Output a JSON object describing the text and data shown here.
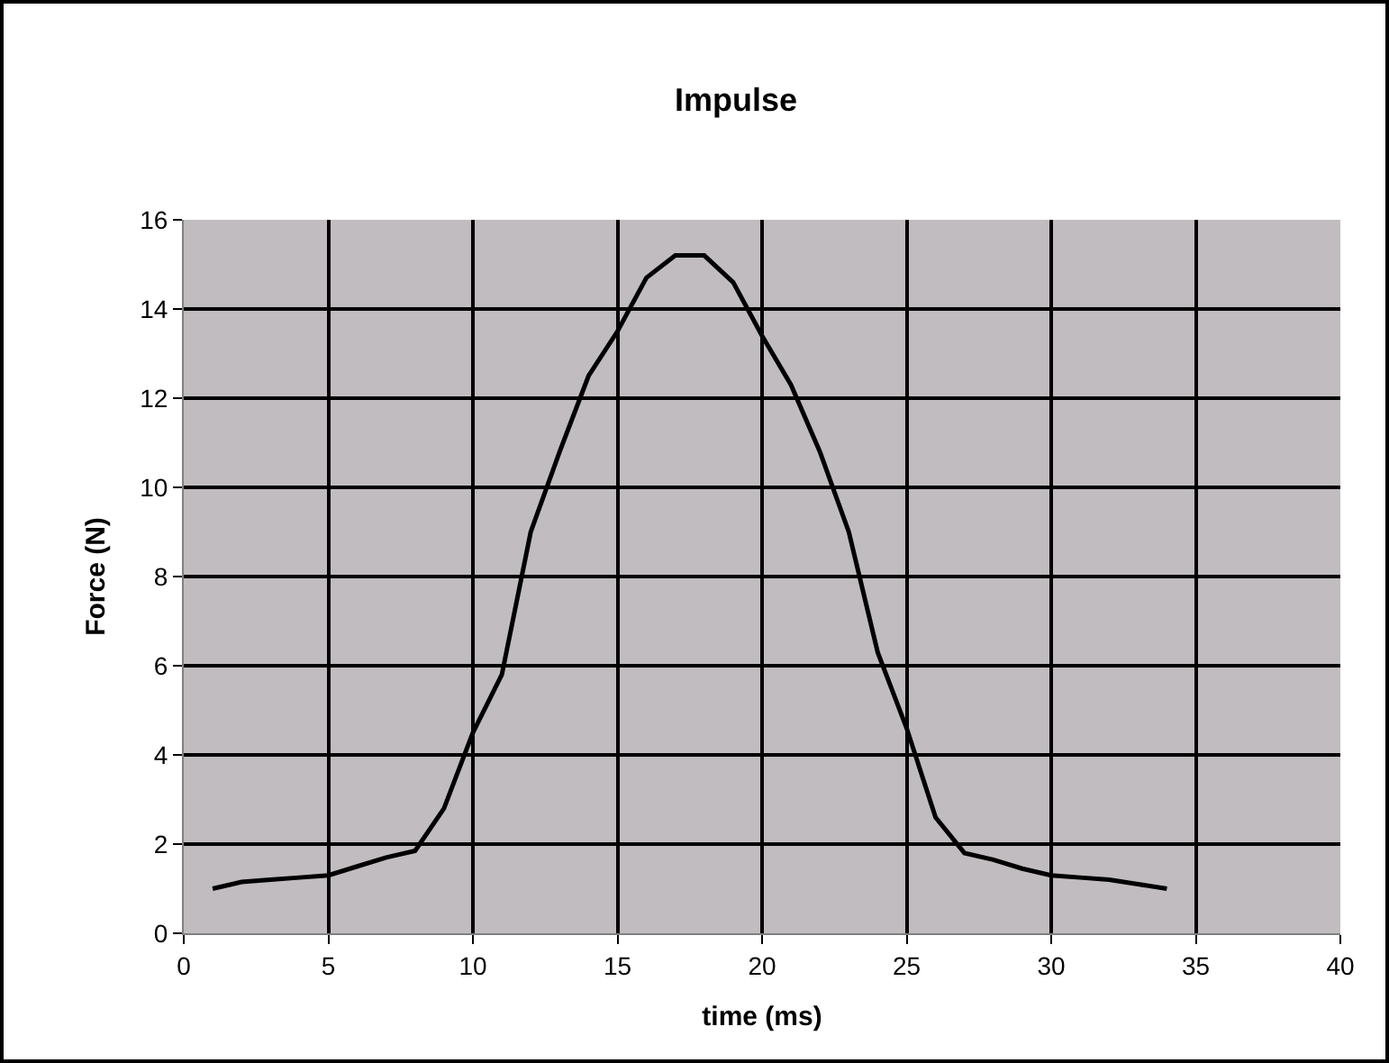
{
  "chart_data": {
    "type": "line",
    "title": "Impulse",
    "xlabel": "time (ms)",
    "ylabel": "Force (N)",
    "x": [
      1,
      2,
      3,
      4,
      5,
      6,
      7,
      8,
      9,
      10,
      11,
      12,
      13,
      14,
      15,
      16,
      17,
      18,
      19,
      20,
      21,
      22,
      23,
      24,
      25,
      26,
      27,
      28,
      29,
      30,
      31,
      32,
      33,
      34
    ],
    "series": [
      {
        "color": "#000000",
        "values": [
          1.0,
          1.15,
          1.2,
          1.25,
          1.3,
          1.5,
          1.7,
          1.85,
          2.8,
          4.5,
          5.8,
          9.0,
          10.8,
          12.5,
          13.5,
          14.7,
          15.2,
          15.2,
          14.6,
          13.4,
          12.3,
          10.8,
          9.0,
          6.3,
          4.6,
          2.6,
          1.8,
          1.65,
          1.45,
          1.3,
          1.25,
          1.2,
          1.1,
          1.0
        ]
      }
    ],
    "xlim": [
      0,
      40
    ],
    "xticks": [
      0,
      5,
      10,
      15,
      20,
      25,
      30,
      35,
      40
    ],
    "ylim": [
      0,
      16
    ],
    "yticks": [
      0,
      2,
      4,
      6,
      8,
      10,
      12,
      14,
      16
    ],
    "grid": true,
    "marker": "none",
    "line_style": "solid"
  }
}
